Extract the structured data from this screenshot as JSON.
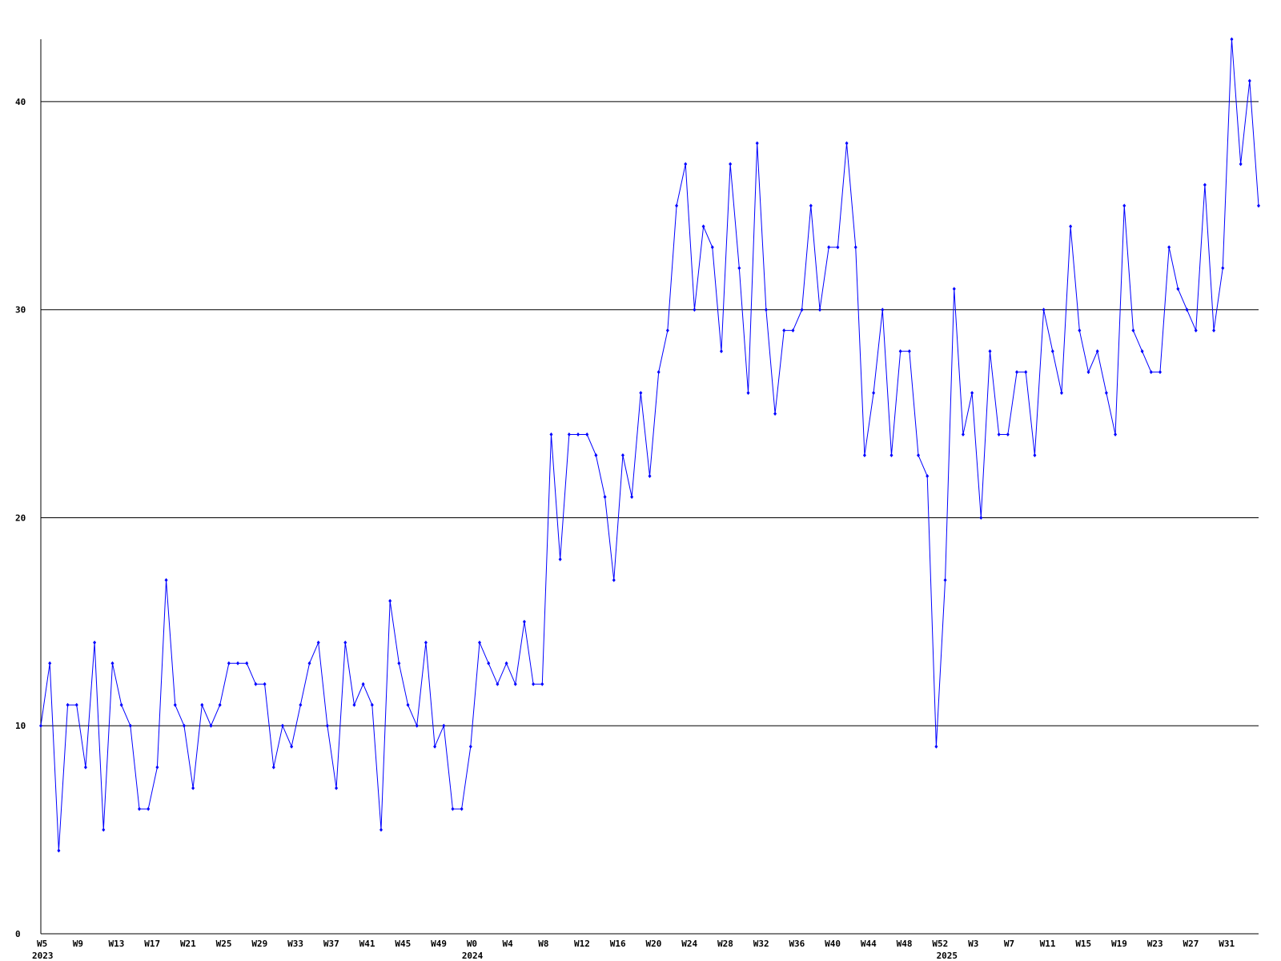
{
  "chart_data": {
    "type": "line",
    "categories": [
      "W5",
      null,
      null,
      null,
      "W9",
      null,
      null,
      null,
      "W13",
      null,
      null,
      null,
      "W17",
      null,
      null,
      null,
      "W21",
      null,
      null,
      null,
      "W25",
      null,
      null,
      null,
      "W29",
      null,
      null,
      null,
      "W33",
      null,
      null,
      null,
      "W37",
      null,
      null,
      null,
      "W41",
      null,
      null,
      null,
      "W45",
      null,
      null,
      null,
      "W49",
      null,
      null,
      null,
      "W0",
      null,
      null,
      null,
      "W4",
      null,
      null,
      null,
      "W8",
      null,
      null,
      null,
      "W12",
      null,
      null,
      null,
      "W16",
      null,
      null,
      null,
      "W20",
      null,
      null,
      null,
      "W24",
      null,
      null,
      null,
      "W28",
      null,
      null,
      null,
      "W32",
      null,
      null,
      null,
      "W36",
      null,
      null,
      null,
      "W40",
      null,
      null,
      null,
      "W44",
      null,
      null,
      null,
      "W48",
      null,
      null,
      null,
      "W52",
      null,
      null,
      null,
      "W3",
      null,
      null,
      null,
      "W7",
      null,
      null,
      null,
      "W11",
      null,
      null,
      null,
      "W15",
      null,
      null,
      null,
      "W19",
      null,
      null,
      null,
      "W23",
      null,
      null,
      null,
      "W27",
      null,
      null,
      null,
      "W31",
      null,
      null,
      null,
      null
    ],
    "category_years": [
      "2023",
      null,
      null,
      null,
      null,
      null,
      null,
      null,
      null,
      null,
      null,
      null,
      null,
      null,
      null,
      null,
      null,
      null,
      null,
      null,
      null,
      null,
      null,
      null,
      null,
      null,
      null,
      null,
      null,
      null,
      null,
      null,
      null,
      null,
      null,
      null,
      null,
      null,
      null,
      null,
      null,
      null,
      null,
      null,
      null,
      null,
      null,
      null,
      "2024",
      null,
      null,
      null,
      null,
      null,
      null,
      null,
      null,
      null,
      null,
      null,
      null,
      null,
      null,
      null,
      null,
      null,
      null,
      null,
      null,
      null,
      null,
      null,
      null,
      null,
      null,
      null,
      null,
      null,
      null,
      null,
      null,
      null,
      null,
      null,
      null,
      null,
      null,
      null,
      null,
      null,
      null,
      null,
      null,
      null,
      null,
      null,
      null,
      null,
      null,
      null,
      null,
      "2025",
      null,
      null,
      null,
      null,
      null,
      null,
      null,
      null,
      null,
      null,
      null,
      null,
      null,
      null,
      null,
      null,
      null,
      null,
      null,
      null,
      null,
      null,
      null,
      null,
      null,
      null,
      null,
      null,
      null,
      null,
      null,
      null,
      null,
      null,
      null
    ],
    "series": [
      {
        "color": "#0000ff",
        "values": [
          10,
          13,
          4,
          11,
          11,
          8,
          14,
          5,
          13,
          11,
          10,
          6,
          6,
          8,
          17,
          11,
          10,
          7,
          11,
          10,
          11,
          13,
          13,
          13,
          12,
          12,
          8,
          10,
          9,
          11,
          13,
          14,
          10,
          7,
          14,
          11,
          12,
          11,
          5,
          16,
          13,
          11,
          10,
          14,
          9,
          10,
          6,
          6,
          9,
          14,
          13,
          12,
          13,
          12,
          15,
          12,
          12,
          24,
          18,
          24,
          24,
          24,
          23,
          21,
          17,
          23,
          21,
          26,
          22,
          27,
          29,
          35,
          37,
          30,
          34,
          33,
          28,
          37,
          32,
          26,
          38,
          30,
          25,
          29,
          29,
          30,
          35,
          30,
          33,
          33,
          38,
          33,
          23,
          26,
          30,
          23,
          28,
          28,
          23,
          22,
          9,
          17,
          31,
          24,
          26,
          20,
          28,
          24,
          24,
          27,
          27,
          23,
          30,
          28,
          26,
          34,
          29,
          27,
          28,
          26,
          24,
          35,
          29,
          28,
          27,
          27,
          33,
          31,
          30,
          29,
          36,
          29,
          32,
          43,
          37,
          41,
          35
        ]
      }
    ],
    "ylim": [
      0,
      43
    ],
    "yticks": [
      0,
      10,
      20,
      30,
      40
    ],
    "grid": true
  }
}
